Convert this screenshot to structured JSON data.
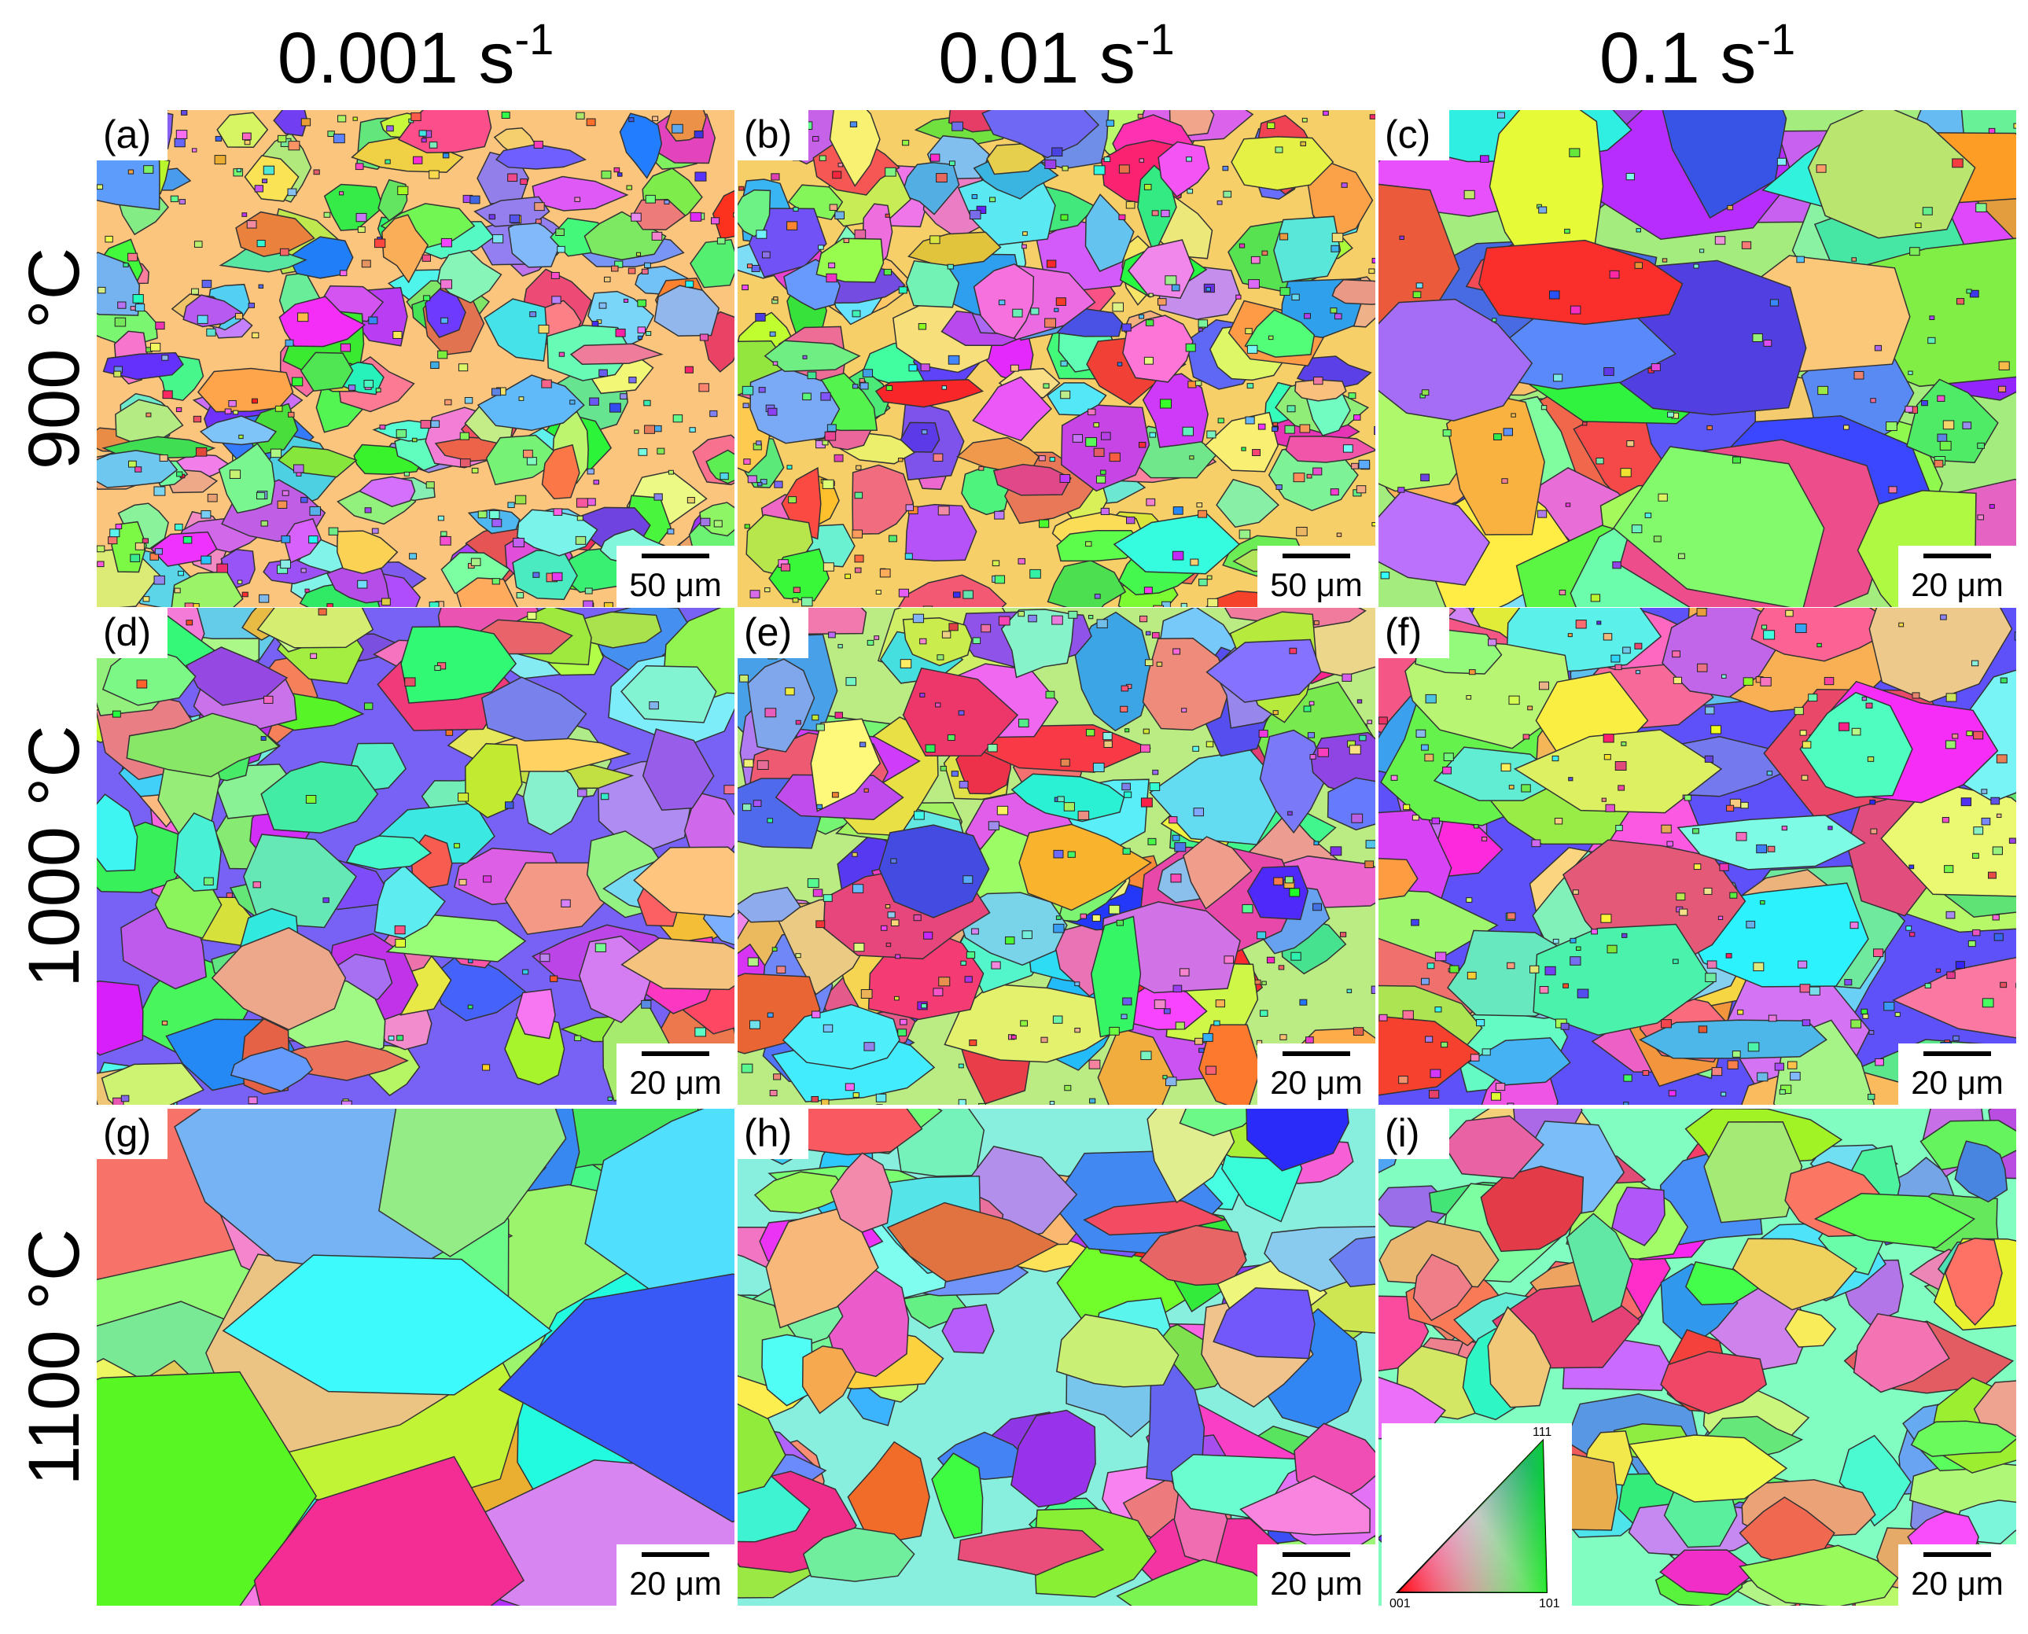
{
  "columns": [
    {
      "rate": "0.001 s",
      "exponent": "-1"
    },
    {
      "rate": "0.01 s",
      "exponent": "-1"
    },
    {
      "rate": "0.1 s",
      "exponent": "-1"
    }
  ],
  "rows": [
    {
      "temperature": "900 °C"
    },
    {
      "temperature": "1000 °C"
    },
    {
      "temperature": "1100 °C"
    }
  ],
  "panels": [
    {
      "label": "(a)",
      "scale_bar": "50 μm"
    },
    {
      "label": "(b)",
      "scale_bar": "50 μm"
    },
    {
      "label": "(c)",
      "scale_bar": "20 μm"
    },
    {
      "label": "(d)",
      "scale_bar": "20 μm"
    },
    {
      "label": "(e)",
      "scale_bar": "20 μm"
    },
    {
      "label": "(f)",
      "scale_bar": "20 μm"
    },
    {
      "label": "(g)",
      "scale_bar": "20 μm"
    },
    {
      "label": "(h)",
      "scale_bar": "20 μm"
    },
    {
      "label": "(i)",
      "scale_bar": "20 μm"
    }
  ],
  "legend": {
    "corner_001": "001",
    "corner_101": "101",
    "corner_111": "111"
  }
}
